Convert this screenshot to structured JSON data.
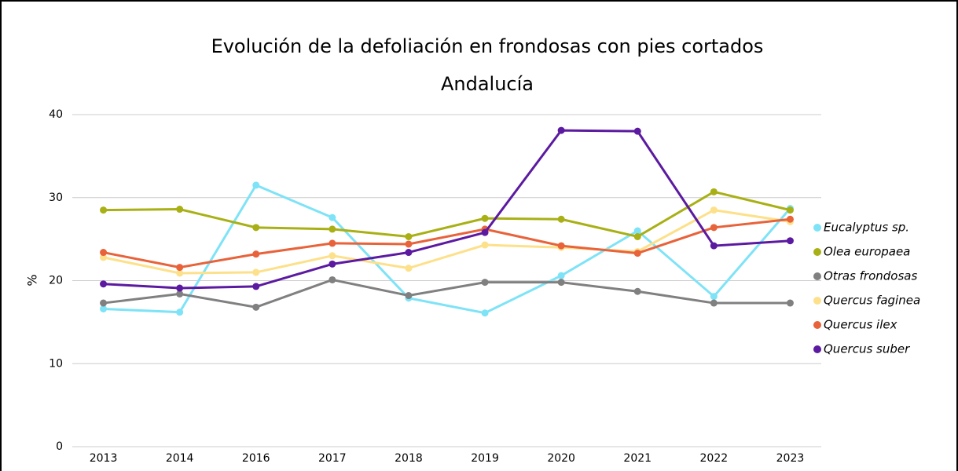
{
  "chart_data": {
    "type": "line",
    "title": "Evolución de la defoliación en frondosas con pies cortados",
    "subtitle": "Andalucía",
    "y_label": "%",
    "categories": [
      "2013",
      "2014",
      "2016",
      "2017",
      "2018",
      "2019",
      "2020",
      "2021",
      "2022",
      "2023"
    ],
    "series": [
      {
        "name": "Eucalyptus sp.",
        "color": "#7ee3f7",
        "values": [
          16.6,
          16.2,
          31.5,
          27.6,
          17.9,
          16.1,
          20.6,
          26.0,
          18.1,
          28.7
        ]
      },
      {
        "name": "Olea europaea",
        "color": "#a8b015",
        "values": [
          28.5,
          28.6,
          26.4,
          26.2,
          25.3,
          27.5,
          27.4,
          25.3,
          30.7,
          28.5
        ]
      },
      {
        "name": "Otras frondosas",
        "color": "#808080",
        "values": [
          17.3,
          18.4,
          16.8,
          20.1,
          18.2,
          19.8,
          19.8,
          18.7,
          17.3,
          17.3
        ]
      },
      {
        "name": "Quercus faginea",
        "color": "#fde08a",
        "values": [
          22.8,
          20.9,
          21.0,
          23.0,
          21.5,
          24.3,
          24.0,
          23.5,
          28.5,
          27.1
        ]
      },
      {
        "name": "Quercus ilex",
        "color": "#e8623a",
        "values": [
          23.4,
          21.6,
          23.2,
          24.5,
          24.4,
          26.2,
          24.2,
          23.3,
          26.4,
          27.4
        ]
      },
      {
        "name": "Quercus suber",
        "color": "#5b1aa0",
        "values": [
          19.6,
          19.1,
          19.3,
          22.0,
          23.4,
          25.8,
          38.1,
          38.0,
          24.2,
          24.8
        ]
      }
    ],
    "ylim": [
      0,
      40
    ],
    "yticks": [
      0,
      10,
      20,
      30,
      40
    ],
    "grid": true,
    "legend": "right"
  }
}
